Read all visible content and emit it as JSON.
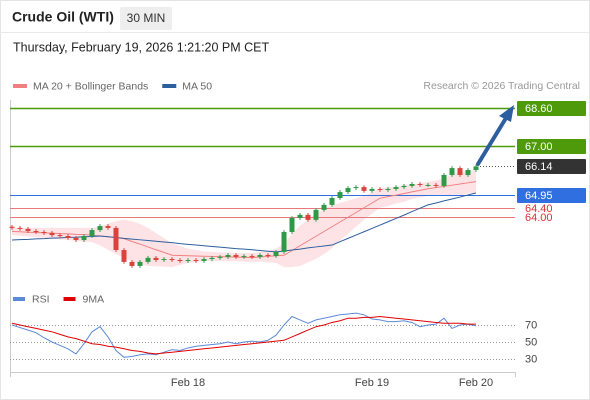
{
  "header": {
    "title": "Crude Oil (WTI)",
    "timeframe": "30 MIN",
    "timestamp": "Thursday, February 19, 2026 1:21:20 PM CET",
    "source": "Research © 2026 Trading Central"
  },
  "chart_data": [
    {
      "type": "candlestick",
      "categories": [
        null,
        null,
        null,
        null,
        null,
        null,
        null,
        null,
        null,
        null,
        null,
        null,
        null,
        null,
        null,
        null,
        null,
        null,
        null,
        null,
        null,
        null,
        "Feb 18",
        null,
        null,
        null,
        null,
        null,
        null,
        null,
        null,
        null,
        null,
        null,
        null,
        null,
        null,
        null,
        null,
        null,
        null,
        null,
        null,
        null,
        null,
        "Feb 19",
        null,
        null,
        null,
        null,
        null,
        null,
        null,
        null,
        null,
        null,
        null,
        null,
        "Feb 20"
      ],
      "open": [
        63.6,
        63.55,
        63.51,
        63.42,
        63.38,
        63.34,
        63.25,
        63.21,
        63.13,
        63.04,
        63.21,
        63.46,
        63.63,
        63.55,
        62.62,
        62.12,
        61.95,
        62.12,
        62.29,
        62.2,
        62.24,
        62.2,
        62.16,
        62.2,
        62.16,
        62.24,
        62.29,
        62.33,
        62.41,
        62.33,
        62.37,
        62.33,
        62.41,
        62.37,
        62.54,
        63.38,
        63.97,
        64.1,
        63.89,
        64.31,
        64.52,
        64.81,
        65.06,
        65.23,
        65.27,
        65.11,
        65.19,
        65.15,
        65.19,
        65.27,
        65.32,
        65.4,
        65.36,
        65.36,
        65.32,
        65.78,
        66.07,
        65.78,
        65.99
      ],
      "high": [
        63.68,
        63.63,
        63.59,
        63.5,
        63.46,
        63.42,
        63.33,
        63.29,
        63.21,
        63.29,
        63.54,
        63.71,
        63.71,
        63.63,
        62.7,
        62.2,
        62.2,
        62.37,
        62.37,
        62.32,
        62.32,
        62.28,
        62.28,
        62.28,
        62.32,
        62.37,
        62.41,
        62.49,
        62.49,
        62.45,
        62.45,
        62.49,
        62.49,
        62.62,
        63.46,
        64.05,
        64.18,
        64.18,
        64.39,
        64.6,
        64.89,
        65.14,
        65.31,
        65.35,
        65.35,
        65.27,
        65.27,
        65.27,
        65.35,
        65.4,
        65.48,
        65.48,
        65.44,
        65.44,
        65.86,
        66.15,
        66.15,
        66.07,
        66.22
      ],
      "low": [
        63.47,
        63.43,
        63.34,
        63.3,
        63.26,
        63.17,
        63.13,
        63.05,
        62.96,
        62.96,
        63.13,
        63.38,
        63.47,
        62.54,
        62.04,
        61.87,
        61.87,
        62.04,
        62.12,
        62.12,
        62.12,
        62.08,
        62.08,
        62.08,
        62.08,
        62.16,
        62.21,
        62.25,
        62.25,
        62.25,
        62.25,
        62.25,
        62.29,
        62.29,
        62.46,
        63.3,
        63.89,
        63.81,
        63.81,
        64.23,
        64.44,
        64.73,
        64.98,
        65.15,
        65.03,
        65.03,
        65.07,
        65.07,
        65.11,
        65.19,
        65.24,
        65.28,
        65.28,
        65.24,
        65.24,
        65.7,
        65.7,
        65.7,
        65.91
      ],
      "close": [
        63.55,
        63.51,
        63.42,
        63.38,
        63.34,
        63.25,
        63.21,
        63.13,
        63.04,
        63.21,
        63.46,
        63.63,
        63.55,
        62.62,
        62.12,
        61.95,
        62.12,
        62.29,
        62.2,
        62.24,
        62.2,
        62.16,
        62.2,
        62.16,
        62.24,
        62.29,
        62.33,
        62.41,
        62.33,
        62.37,
        62.33,
        62.41,
        62.37,
        62.54,
        63.38,
        63.97,
        64.1,
        63.89,
        64.31,
        64.52,
        64.81,
        65.06,
        65.23,
        65.27,
        65.11,
        65.19,
        65.15,
        65.19,
        65.27,
        65.32,
        65.4,
        65.36,
        65.36,
        65.32,
        65.78,
        66.07,
        65.78,
        65.99,
        66.14
      ],
      "up_color": "#2e9a48",
      "down_color": "#d9433b",
      "series": [
        {
          "name": "MA 20 + Bollinger Bands",
          "color": "#f08080",
          "band_color": "#fde3e6",
          "values": [
            63.4,
            63.39,
            63.37,
            63.36,
            63.34,
            63.33,
            63.31,
            63.3,
            63.28,
            63.27,
            63.25,
            63.21,
            63.18,
            63.14,
            63.1,
            62.98,
            62.87,
            62.75,
            62.63,
            62.52,
            62.4,
            62.39,
            62.38,
            62.37,
            62.36,
            62.35,
            62.34,
            62.33,
            62.32,
            62.31,
            62.3,
            62.33,
            62.35,
            62.38,
            62.4,
            62.6,
            62.8,
            63.0,
            63.2,
            63.4,
            63.6,
            63.8,
            64.0,
            64.2,
            64.4,
            64.6,
            64.8,
            64.87,
            64.93,
            65.0,
            65.07,
            65.13,
            65.2,
            65.25,
            65.3,
            65.35,
            65.4,
            65.45,
            65.5
          ],
          "upper": [
            63.55,
            63.56,
            63.55,
            63.56,
            63.55,
            63.56,
            63.55,
            63.56,
            63.55,
            63.56,
            63.55,
            63.61,
            63.73,
            63.84,
            63.9,
            63.83,
            63.72,
            63.55,
            63.33,
            63.12,
            62.9,
            62.79,
            62.68,
            62.62,
            62.56,
            62.55,
            62.52,
            62.51,
            62.5,
            62.49,
            62.5,
            62.53,
            62.6,
            62.68,
            62.9,
            63.3,
            63.65,
            63.9,
            64.15,
            64.35,
            64.5,
            64.6,
            64.7,
            64.8,
            64.9,
            65.05,
            65.2,
            65.27,
            65.28,
            65.35,
            65.37,
            65.43,
            65.5,
            65.55,
            65.65,
            65.8,
            65.9,
            65.95,
            66.0
          ],
          "lower": [
            63.25,
            63.22,
            63.19,
            63.16,
            63.13,
            63.1,
            63.07,
            63.04,
            63.01,
            62.98,
            62.95,
            62.81,
            62.63,
            62.44,
            62.3,
            62.13,
            62.02,
            61.95,
            61.93,
            61.92,
            61.9,
            61.99,
            62.08,
            62.12,
            62.16,
            62.15,
            62.16,
            62.15,
            62.14,
            62.13,
            62.1,
            62.13,
            62.1,
            62.08,
            61.9,
            61.9,
            61.95,
            62.1,
            62.25,
            62.45,
            62.7,
            63.0,
            63.3,
            63.6,
            63.9,
            64.15,
            64.4,
            64.47,
            64.58,
            64.65,
            64.77,
            64.83,
            64.9,
            64.95,
            64.95,
            64.9,
            64.9,
            65.0,
            65.0
          ]
        },
        {
          "name": "MA 50",
          "color": "#2c5f9e",
          "values": [
            63.04,
            63.06,
            63.07,
            63.09,
            63.1,
            63.12,
            63.13,
            63.15,
            63.16,
            63.18,
            63.19,
            63.21,
            63.18,
            63.15,
            63.11,
            63.08,
            63.05,
            63.02,
            62.99,
            62.96,
            62.93,
            62.89,
            62.86,
            62.83,
            62.8,
            62.77,
            62.74,
            62.71,
            62.68,
            62.66,
            62.63,
            62.6,
            62.57,
            62.54,
            62.58,
            62.62,
            62.66,
            62.71,
            62.75,
            62.79,
            62.83,
            62.97,
            63.11,
            63.25,
            63.39,
            63.53,
            63.67,
            63.81,
            63.95,
            64.09,
            64.24,
            64.38,
            64.52,
            64.6,
            64.69,
            64.77,
            64.85,
            64.94,
            65.02
          ]
        }
      ],
      "levels": [
        {
          "value": 68.6,
          "label": "68.60",
          "color": "#4f9a0a",
          "boxed": true
        },
        {
          "value": 67.0,
          "label": "67.00",
          "color": "#4f9a0a",
          "boxed": true
        },
        {
          "value": 66.14,
          "color": "#333333",
          "boxed": true,
          "dotted": true
        },
        {
          "value": 64.95,
          "color": "#2f6fe0",
          "boxed": true
        },
        {
          "value": 64.4,
          "label": "64.40",
          "color": "#e8797b",
          "boxed": false
        },
        {
          "value": 64.0,
          "label": "64.00",
          "color": "#e8797b",
          "boxed": false
        }
      ],
      "ylim": [
        61.4,
        69.0
      ]
    },
    {
      "type": "line",
      "series": [
        {
          "name": "RSI",
          "color": "#5b8ad8",
          "values": [
            70,
            67,
            64,
            61,
            55,
            50,
            46,
            42,
            36,
            48,
            62,
            68,
            56,
            40,
            32,
            33,
            35,
            36,
            35,
            38,
            41,
            40,
            43,
            45,
            46,
            47,
            48,
            50,
            48,
            50,
            51,
            50,
            52,
            58,
            70,
            80,
            76,
            72,
            76,
            78,
            80,
            82,
            83,
            84,
            82,
            77,
            76,
            74,
            74,
            75,
            73,
            68,
            70,
            71,
            78,
            66,
            70,
            71,
            69
          ]
        },
        {
          "name": "9MA",
          "color": "#e00000",
          "values": [
            72,
            70,
            68,
            66,
            64,
            62,
            59,
            56,
            54,
            51,
            48,
            47,
            45,
            44,
            42,
            40,
            39,
            37,
            36,
            37,
            38,
            39,
            40,
            41,
            42,
            43,
            44,
            45,
            46,
            47,
            48,
            49,
            50,
            51,
            52,
            56,
            60,
            64,
            68,
            70,
            73,
            75,
            78,
            78,
            79,
            79,
            80,
            79,
            78,
            77,
            76,
            75,
            74,
            73,
            72,
            72,
            72,
            71,
            71
          ]
        }
      ],
      "ylim": [
        20,
        90
      ],
      "yticks": [
        30,
        50,
        70
      ]
    }
  ]
}
